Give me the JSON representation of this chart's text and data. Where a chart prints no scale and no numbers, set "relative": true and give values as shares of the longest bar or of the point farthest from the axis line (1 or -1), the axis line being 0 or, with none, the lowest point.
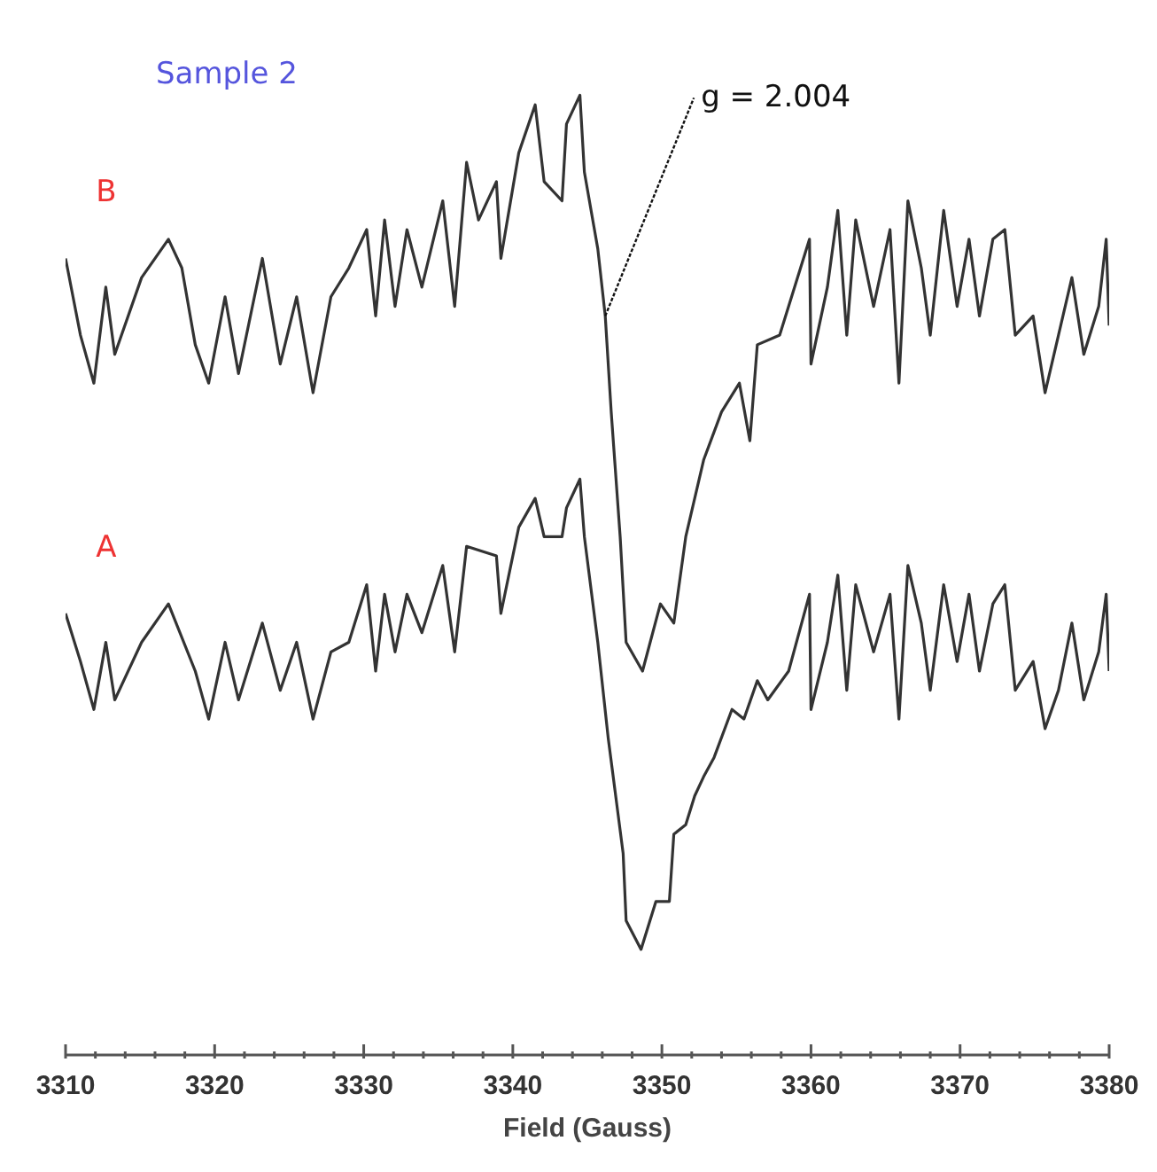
{
  "chart_data": {
    "type": "line",
    "title": "Sample 2",
    "xlabel": "Field (Gauss)",
    "relative": true,
    "xlim": [
      3310,
      3380
    ],
    "xticks": [
      3310,
      {
        "value": 3312,
        "label": null
      },
      {
        "value": 3314,
        "label": null
      },
      {
        "value": 3316,
        "label": null
      },
      {
        "value": 3318,
        "label": null
      },
      3320,
      {
        "value": 3322,
        "label": null
      },
      {
        "value": 3324,
        "label": null
      },
      {
        "value": 3326,
        "label": null
      },
      {
        "value": 3328,
        "label": null
      },
      3330,
      {
        "value": 3332,
        "label": null
      },
      {
        "value": 3334,
        "label": null
      },
      {
        "value": 3336,
        "label": null
      },
      {
        "value": 3338,
        "label": null
      },
      3340,
      {
        "value": 3342,
        "label": null
      },
      {
        "value": 3344,
        "label": null
      },
      {
        "value": 3346,
        "label": null
      },
      {
        "value": 3348,
        "label": null
      },
      3350,
      {
        "value": 3352,
        "label": null
      },
      {
        "value": 3354,
        "label": null
      },
      {
        "value": 3356,
        "label": null
      },
      {
        "value": 3358,
        "label": null
      },
      3360,
      {
        "value": 3362,
        "label": null
      },
      {
        "value": 3364,
        "label": null
      },
      {
        "value": 3366,
        "label": null
      },
      {
        "value": 3368,
        "label": null
      },
      3370,
      {
        "value": 3372,
        "label": null
      },
      {
        "value": 3374,
        "label": null
      },
      {
        "value": 3376,
        "label": null
      },
      {
        "value": 3378,
        "label": null
      },
      3380
    ],
    "annotations": [
      {
        "text": "g = 2.004",
        "x": 3346.2,
        "y": 0.77
      }
    ],
    "series": [
      {
        "name": "B",
        "color": "#333333",
        "x": [
          3310.0,
          3311.0,
          3311.9,
          3312.7,
          3313.3,
          3315.1,
          3316.9,
          3317.8,
          3318.7,
          3319.6,
          3320.7,
          3321.6,
          3323.2,
          3324.4,
          3325.5,
          3326.6,
          3327.8,
          3329.0,
          3330.2,
          3330.8,
          3331.4,
          3332.1,
          3332.9,
          3333.9,
          3335.3,
          3336.1,
          3336.9,
          3337.7,
          3338.9,
          3339.2,
          3340.4,
          3341.5,
          3342.1,
          3343.3,
          3343.6,
          3344.5,
          3344.8,
          3345.7,
          3346.2,
          3346.6,
          3347.2,
          3347.6,
          3348.7,
          3349.9,
          3350.8,
          3351.6,
          3352.8,
          3354.0,
          3355.2,
          3355.9,
          3356.4,
          3357.9,
          3359.9,
          3360.0,
          3361.1,
          3361.8,
          3362.4,
          3363.0,
          3364.2,
          3365.3,
          3365.9,
          3366.5,
          3367.4,
          3368.0,
          3368.9,
          3369.8,
          3370.6,
          3371.3,
          3372.2,
          3373.0,
          3373.7,
          3374.9,
          3375.7,
          3376.6,
          3377.5,
          3378.3,
          3379.3,
          3379.8,
          3380.0
        ],
        "values": [
          0.83,
          0.75,
          0.7,
          0.8,
          0.73,
          0.81,
          0.85,
          0.82,
          0.74,
          0.7,
          0.79,
          0.71,
          0.83,
          0.72,
          0.79,
          0.69,
          0.79,
          0.82,
          0.86,
          0.77,
          0.87,
          0.78,
          0.86,
          0.8,
          0.89,
          0.78,
          0.93,
          0.87,
          0.91,
          0.83,
          0.94,
          0.99,
          0.91,
          0.89,
          0.97,
          1.0,
          0.92,
          0.84,
          0.77,
          0.67,
          0.54,
          0.43,
          0.4,
          0.47,
          0.45,
          0.54,
          0.62,
          0.67,
          0.7,
          0.64,
          0.74,
          0.75,
          0.85,
          0.72,
          0.8,
          0.88,
          0.75,
          0.87,
          0.78,
          0.86,
          0.7,
          0.89,
          0.82,
          0.75,
          0.88,
          0.78,
          0.85,
          0.77,
          0.85,
          0.86,
          0.75,
          0.77,
          0.69,
          0.75,
          0.81,
          0.73,
          0.78,
          0.85,
          0.76
        ]
      },
      {
        "name": "A",
        "color": "#333333",
        "x": [
          3310.0,
          3311.0,
          3311.9,
          3312.7,
          3313.3,
          3315.1,
          3316.9,
          3318.7,
          3319.6,
          3320.7,
          3321.6,
          3323.2,
          3324.4,
          3325.5,
          3326.6,
          3327.8,
          3329.0,
          3330.2,
          3330.8,
          3331.4,
          3332.1,
          3332.9,
          3333.9,
          3335.3,
          3336.1,
          3336.9,
          3338.9,
          3339.2,
          3340.4,
          3341.5,
          3342.1,
          3343.3,
          3343.6,
          3344.5,
          3344.8,
          3345.7,
          3346.4,
          3347.4,
          3347.6,
          3348.6,
          3349.6,
          3350.5,
          3350.8,
          3351.6,
          3352.2,
          3352.8,
          3353.5,
          3354.7,
          3355.5,
          3356.4,
          3357.1,
          3358.5,
          3359.9,
          3360.0,
          3361.1,
          3361.8,
          3362.4,
          3363.0,
          3364.2,
          3365.3,
          3365.9,
          3366.5,
          3367.4,
          3368.0,
          3368.9,
          3369.8,
          3370.6,
          3371.3,
          3372.2,
          3373.0,
          3373.7,
          3374.9,
          3375.7,
          3376.6,
          3377.5,
          3378.3,
          3379.3,
          3379.8,
          3380.0
        ],
        "values": [
          0.46,
          0.41,
          0.36,
          0.43,
          0.37,
          0.43,
          0.47,
          0.4,
          0.35,
          0.43,
          0.37,
          0.45,
          0.38,
          0.43,
          0.35,
          0.42,
          0.43,
          0.49,
          0.4,
          0.48,
          0.42,
          0.48,
          0.44,
          0.51,
          0.42,
          0.53,
          0.52,
          0.46,
          0.55,
          0.58,
          0.54,
          0.54,
          0.57,
          0.6,
          0.54,
          0.43,
          0.33,
          0.21,
          0.14,
          0.11,
          0.16,
          0.16,
          0.23,
          0.24,
          0.27,
          0.29,
          0.31,
          0.36,
          0.35,
          0.39,
          0.37,
          0.4,
          0.48,
          0.36,
          0.43,
          0.5,
          0.38,
          0.49,
          0.42,
          0.48,
          0.35,
          0.51,
          0.45,
          0.38,
          0.49,
          0.41,
          0.48,
          0.4,
          0.47,
          0.49,
          0.38,
          0.41,
          0.34,
          0.38,
          0.45,
          0.37,
          0.42,
          0.48,
          0.4
        ]
      }
    ]
  }
}
